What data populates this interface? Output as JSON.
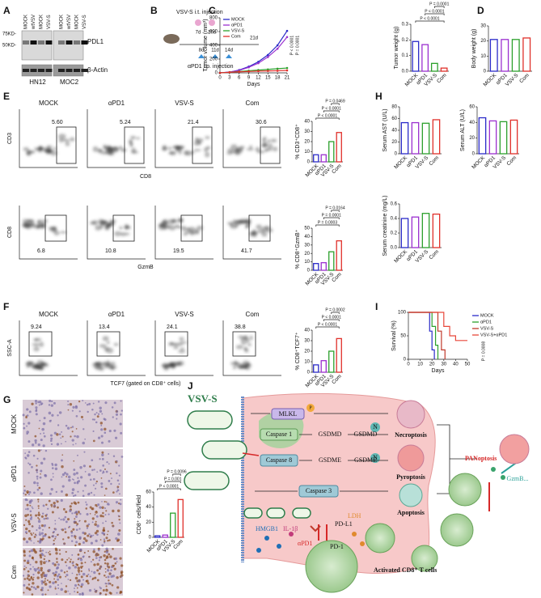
{
  "panel_labels": [
    "A",
    "B",
    "C",
    "D",
    "E",
    "F",
    "G",
    "H",
    "I",
    "J"
  ],
  "blot": {
    "lanes": [
      "MOCK",
      "wtVSV",
      "MOCK",
      "VSV-S",
      "MOCK",
      "wtVSV",
      "MOCK",
      "VSV-S"
    ],
    "markers": [
      "75KD-",
      "50KD-"
    ],
    "proteins": [
      "PDL1",
      "β-Actin"
    ],
    "cell_lines": [
      "HN12",
      "MOC2"
    ]
  },
  "schedule": {
    "virus_label": "VSV-S i.t. injection",
    "virus_days": [
      "7d",
      "10d"
    ],
    "antibody_days": [
      "8d",
      "11d",
      "14d"
    ],
    "end": "21d",
    "antibody_label": "αPD1 i.p. injection"
  },
  "flow": [
    {
      "y_label": "CD3",
      "x_label": "CD8",
      "groups": [
        "MOCK",
        "αPD1",
        "VSV-S",
        "Com"
      ],
      "gates": [
        "5.60",
        "5.24",
        "21.4",
        "30.6"
      ]
    },
    {
      "y_label": "CD8",
      "x_label": "GzmB",
      "gates": [
        "6.8",
        "10.8",
        "19.5",
        "41.7"
      ]
    },
    {
      "y_label": "SSC-A",
      "x_label": "TCF7 (gated on CD8⁺ cells)",
      "groups": [
        "MOCK",
        "αPD1",
        "VSV-S",
        "Com"
      ],
      "gates": [
        "9.24",
        "13.4",
        "24.1",
        "38.8"
      ]
    }
  ],
  "ihc": {
    "groups": [
      "MOCK",
      "αPD1",
      "VSV-S",
      "Com"
    ]
  },
  "chart_data": [
    {
      "type": "line",
      "y_label": "Tumor volume (mm³)",
      "x_label": "Days",
      "x": [
        0,
        3,
        6,
        9,
        12,
        15,
        18,
        21
      ],
      "xlim": [
        0,
        21
      ],
      "xticks": [
        0,
        3,
        6,
        9,
        12,
        15,
        18,
        21
      ],
      "ylim": [
        0,
        800
      ],
      "yticks": [
        0,
        200,
        400,
        600,
        800
      ],
      "series": [
        {
          "name": "MOCK",
          "color": "#2b2bc8",
          "values": [
            0,
            10,
            40,
            90,
            160,
            260,
            400,
            610
          ]
        },
        {
          "name": "αPD1",
          "color": "#9b30d0",
          "values": [
            0,
            10,
            35,
            80,
            140,
            230,
            350,
            520
          ]
        },
        {
          "name": "VSV-S",
          "color": "#2ca02c",
          "values": [
            0,
            8,
            20,
            30,
            40,
            50,
            60,
            70
          ]
        },
        {
          "name": "Com",
          "color": "#e0302a",
          "values": [
            0,
            8,
            15,
            20,
            25,
            28,
            30,
            35
          ]
        }
      ],
      "annotations": [
        "P < 0.0001",
        "P = 0.0001"
      ]
    },
    {
      "type": "bar",
      "y_label": "Tumor weight (g)",
      "categories": [
        "MOCK",
        "αPD1",
        "VSV-S",
        "Com"
      ],
      "values": [
        0.19,
        0.17,
        0.05,
        0.02
      ],
      "colors": [
        "#2b2bc8",
        "#9b30d0",
        "#2ca02c",
        "#e0302a"
      ],
      "ylim": [
        0,
        0.3
      ],
      "yticks": [
        {
          "value": 0,
          "label": "0.0"
        },
        0.1,
        0.2,
        0.3
      ],
      "annotations": [
        "P < 0.0001",
        "P < 0.0001",
        "P = 0.0001"
      ]
    },
    {
      "type": "bar",
      "y_label": "Body weight (g)",
      "categories": [
        "MOCK",
        "αPD1",
        "VSV-S",
        "Com"
      ],
      "values": [
        21,
        21,
        21,
        22
      ],
      "colors": [
        "#2b2bc8",
        "#9b30d0",
        "#2ca02c",
        "#e0302a"
      ],
      "ylim": [
        0,
        30
      ],
      "yticks": [
        0,
        10,
        20,
        30
      ]
    },
    {
      "type": "bar",
      "y_label": "% CD3⁺CD8⁺",
      "categories": [
        "MOCK",
        "αPD1",
        "VSV-S",
        "Com"
      ],
      "values": [
        7,
        7,
        20,
        29
      ],
      "colors": [
        "#2b2bc8",
        "#9b30d0",
        "#2ca02c",
        "#e0302a"
      ],
      "ylim": [
        0,
        40
      ],
      "yticks": [
        0,
        10,
        20,
        30,
        40
      ],
      "annotations": [
        "P < 0.0001",
        "P < 0.0001",
        "P = 0.0469"
      ]
    },
    {
      "type": "bar",
      "y_label": "% CD8⁺GzmB⁺",
      "categories": [
        "MOCK",
        "αPD1",
        "VSV-S",
        "Com"
      ],
      "values": [
        8,
        9,
        22,
        35
      ],
      "colors": [
        "#2b2bc8",
        "#9b30d0",
        "#2ca02c",
        "#e0302a"
      ],
      "ylim": [
        0,
        50
      ],
      "yticks": [
        0,
        10,
        20,
        30,
        40,
        50
      ],
      "annotations": [
        "P = 0.0003",
        "P = 0.0001",
        "P = 0.0164"
      ]
    },
    {
      "type": "bar",
      "y_label": "% CD8⁺TCF7⁺",
      "categories": [
        "MOCK",
        "αPD1",
        "VSV-S",
        "Com"
      ],
      "values": [
        7,
        11,
        20,
        32
      ],
      "colors": [
        "#2b2bc8",
        "#9b30d0",
        "#2ca02c",
        "#e0302a"
      ],
      "ylim": [
        0,
        40
      ],
      "yticks": [
        0,
        10,
        20,
        30,
        40
      ],
      "annotations": [
        "P < 0.0001",
        "P < 0.0001",
        "P = 0.0002"
      ]
    },
    {
      "type": "bar",
      "y_label": "CD8⁺ cells/field",
      "categories": [
        "MOCK",
        "αPD1",
        "VSV-S",
        "Com"
      ],
      "values": [
        2,
        3,
        32,
        50
      ],
      "colors": [
        "#2b2bc8",
        "#9b30d0",
        "#2ca02c",
        "#e0302a"
      ],
      "ylim": [
        0,
        60
      ],
      "yticks": [
        0,
        20,
        40,
        60
      ],
      "annotations": [
        "P < 0.0001",
        "P = 0.001",
        "P = 0.0096"
      ]
    },
    {
      "type": "bar",
      "y_label": "Serum AST (U/L)",
      "categories": [
        "MOCK",
        "αPD1",
        "VSV-S",
        "Com"
      ],
      "values": [
        53,
        53,
        52,
        58
      ],
      "colors": [
        "#2b2bc8",
        "#9b30d0",
        "#2ca02c",
        "#e0302a"
      ],
      "ylim": [
        0,
        80
      ],
      "yticks": [
        0,
        20,
        40,
        60,
        80
      ]
    },
    {
      "type": "bar",
      "y_label": "Serum ALT (U/L)",
      "categories": [
        "MOCK",
        "αPD1",
        "VSV-S",
        "Com"
      ],
      "values": [
        46,
        42,
        41,
        43
      ],
      "colors": [
        "#2b2bc8",
        "#9b30d0",
        "#2ca02c",
        "#e0302a"
      ],
      "ylim": [
        0,
        60
      ],
      "yticks": [
        0,
        20,
        40,
        60
      ]
    },
    {
      "type": "bar",
      "y_label": "Serum creatinine (mg/L)",
      "categories": [
        "MOCK",
        "αPD1",
        "VSV-S",
        "Com"
      ],
      "values": [
        0.4,
        0.42,
        0.47,
        0.46
      ],
      "colors": [
        "#2b2bc8",
        "#9b30d0",
        "#2ca02c",
        "#e0302a"
      ],
      "ylim": [
        0,
        0.6
      ],
      "yticks": [
        {
          "value": 0,
          "label": "0.0"
        },
        0.2,
        0.4,
        0.6
      ]
    },
    {
      "type": "survival",
      "y_label": "Survival (%)",
      "x_label": "Days",
      "xlim": [
        0,
        50
      ],
      "xticks": [
        0,
        10,
        20,
        30,
        40,
        50
      ],
      "ylim": [
        0,
        100
      ],
      "yticks": [
        0,
        50,
        100
      ],
      "series": [
        {
          "name": "MOCK",
          "color": "#2b2bc8",
          "x": [
            0,
            18,
            18,
            20,
            20,
            22,
            22
          ],
          "values": [
            100,
            100,
            60,
            60,
            20,
            20,
            0
          ]
        },
        {
          "name": "αPD1",
          "color": "#2ca02c",
          "x": [
            0,
            20,
            20,
            23,
            23,
            25,
            25
          ],
          "values": [
            100,
            100,
            70,
            70,
            30,
            30,
            0
          ]
        },
        {
          "name": "VSV-S",
          "color": "#c0392b",
          "x": [
            0,
            25,
            25,
            28,
            28,
            31,
            31
          ],
          "values": [
            100,
            100,
            60,
            60,
            20,
            20,
            0
          ]
        },
        {
          "name": "VSV-S+αPD1",
          "color": "#e8473a",
          "x": [
            0,
            30,
            30,
            35,
            35,
            40,
            40,
            50
          ],
          "values": [
            100,
            100,
            70,
            70,
            50,
            50,
            40,
            40
          ]
        }
      ],
      "annotations": [
        "P = 0.0008"
      ]
    }
  ],
  "diagram": {
    "virus": "VSV-S",
    "mlkl": "MLKL",
    "phospho": "P",
    "caspase1": "Caspase 1",
    "caspase8": "Caspase 8",
    "gsdmd": "GSDMD",
    "gsdmd_n": "GSDMD",
    "gsdme": "GSDME",
    "gsdme_n": "GSDME",
    "n_labels": [
      "N",
      "N"
    ],
    "caspase3": "Caspase 3",
    "necroptosis": "Necroptosis",
    "pyroptosis": "Pyroptosis",
    "apoptosis": "Apoptosis",
    "panoptosis": "PANoptosis",
    "gzmb": "GzmB...",
    "ldh": "LDH",
    "hmgb1": "HMGB1",
    "il1b": "IL-1β",
    "pdl1": "PD-L1",
    "pd1": "PD-1",
    "apd1": "αPD1",
    "tcells": "Activated CD8⁺ T cells"
  }
}
